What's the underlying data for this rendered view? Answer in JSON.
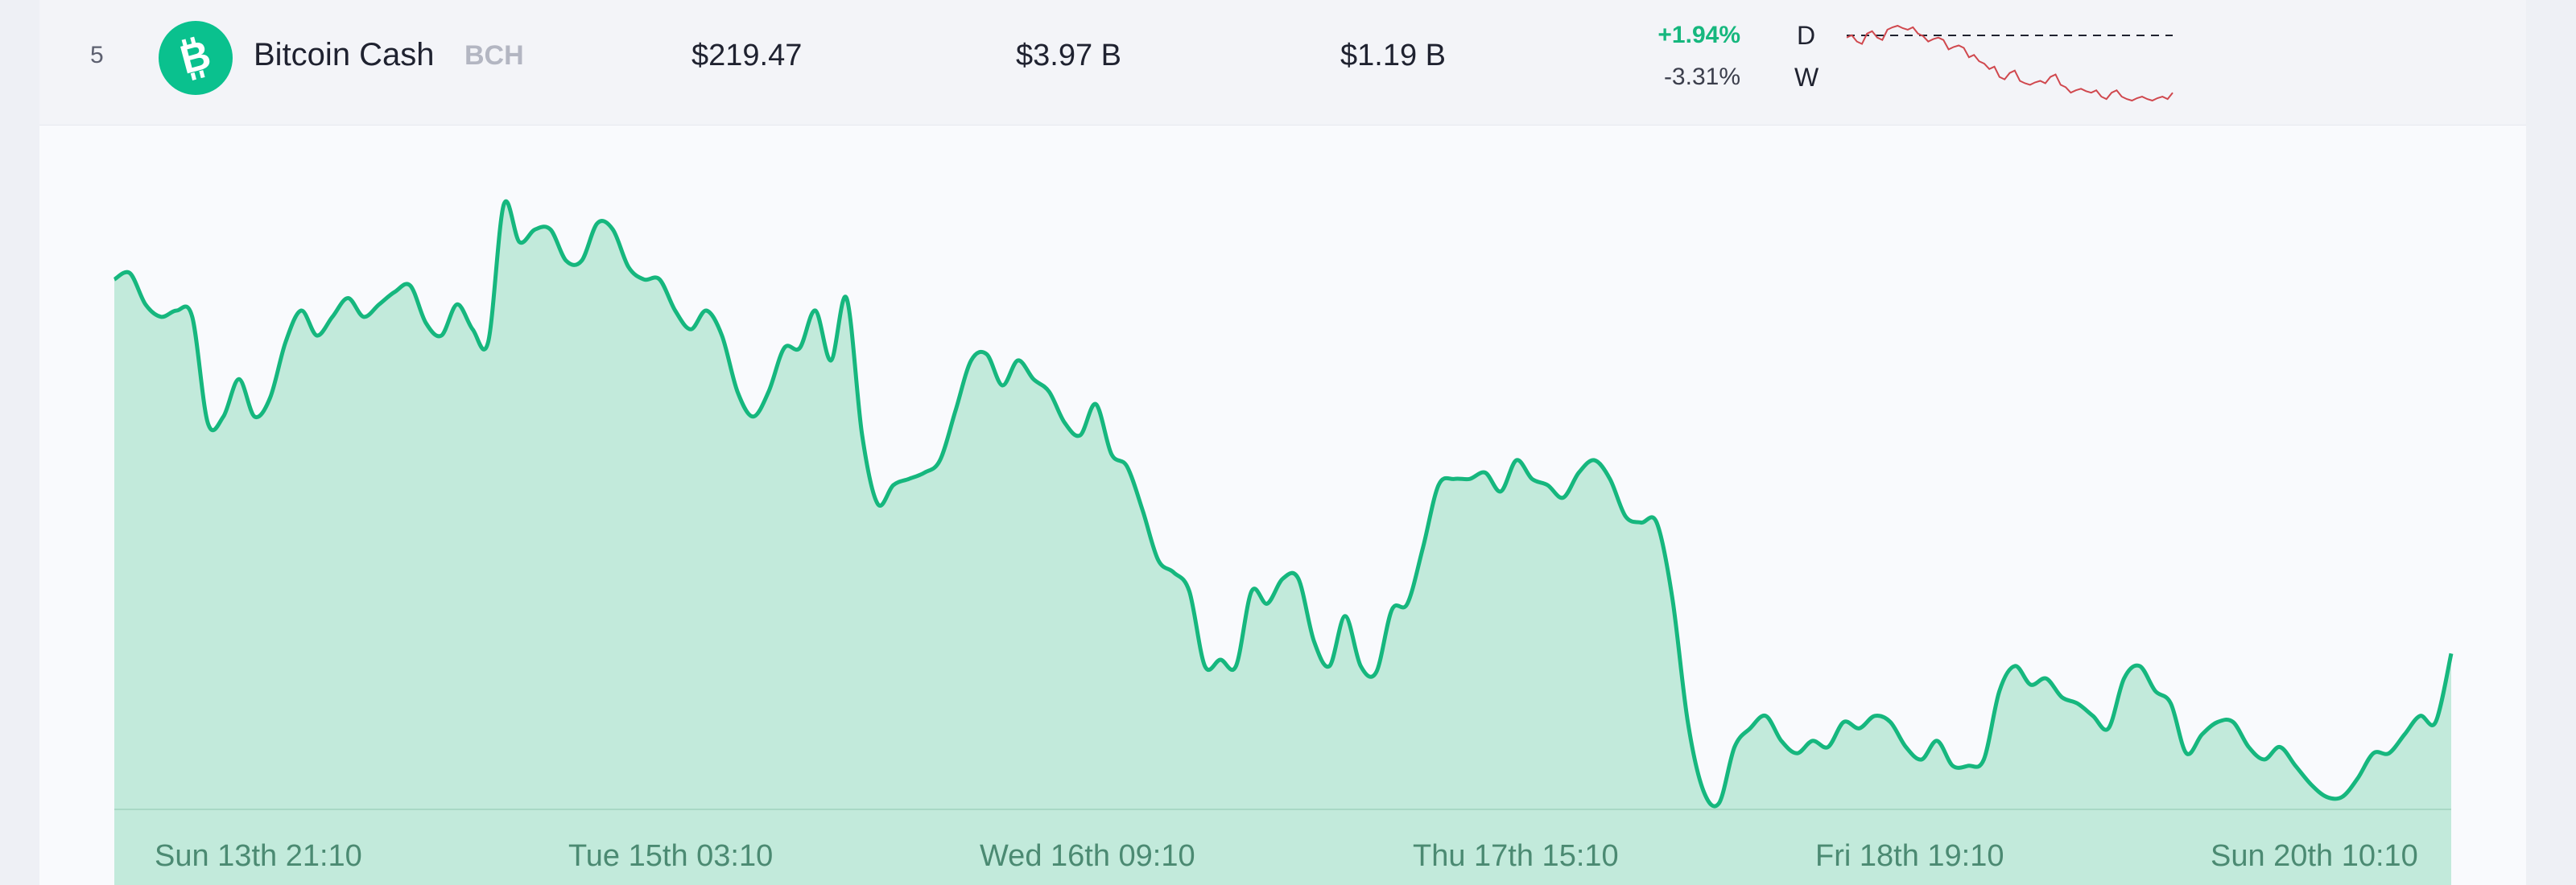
{
  "row": {
    "rank": "5",
    "name": "Bitcoin Cash",
    "symbol": "BCH",
    "price": "$219.47",
    "market_cap": "$3.97 B",
    "volume": "$1.19 B",
    "change_day": "+1.94%",
    "change_day_label": "D",
    "change_week": "-3.31%",
    "change_week_label": "W",
    "icon": "bitcoin-cash-logo-icon",
    "colors": {
      "brand": "#0ac18e",
      "up": "#16b77e",
      "sparkline": "#d0484e"
    }
  },
  "sparkline": {
    "values": [
      100,
      99,
      101,
      100,
      102,
      103,
      102,
      101,
      99,
      100,
      97,
      98,
      95,
      94,
      92,
      90,
      91,
      89,
      88,
      89,
      90,
      88,
      86,
      87,
      86,
      85,
      86,
      85,
      84,
      85,
      84,
      85,
      86
    ]
  },
  "chart_data": {
    "type": "area",
    "x_tick_labels": [
      "Sun 13th 21:10",
      "Tue 15th 03:10",
      "Wed 16th 09:10",
      "Thu 17th 15:10",
      "Fri 18th 19:10",
      "Sun 20th 10:10"
    ],
    "ylim": [
      0,
      100
    ],
    "grid": false,
    "line_color": "#16b77e",
    "fill_color": "#c2eadb",
    "values": [
      85,
      86,
      81,
      79,
      80,
      79,
      62,
      63,
      69,
      63,
      66,
      75,
      80,
      76,
      79,
      82,
      79,
      81,
      83,
      84,
      78,
      76,
      81,
      77,
      75,
      97,
      91,
      93,
      93,
      88,
      88,
      94,
      93,
      87,
      85,
      85,
      80,
      77,
      80,
      76,
      67,
      63,
      67,
      74,
      74,
      80,
      72,
      82,
      60,
      49,
      52,
      53,
      54,
      56,
      64,
      72,
      73,
      68,
      72,
      69,
      67,
      62,
      60,
      65,
      57,
      55,
      48,
      40,
      38,
      35,
      23,
      24,
      23,
      35,
      33,
      37,
      37,
      27,
      23,
      31,
      23,
      22,
      32,
      33,
      42,
      52,
      53,
      53,
      54,
      51,
      56,
      53,
      52,
      50,
      54,
      56,
      53,
      47,
      46,
      46,
      34,
      14,
      3,
      1,
      10,
      13,
      15,
      11,
      9,
      11,
      10,
      14,
      13,
      15,
      14,
      10,
      8,
      11,
      7,
      7,
      8,
      19,
      23,
      20,
      21,
      18,
      17,
      15,
      13,
      21,
      23,
      19,
      17,
      9,
      12,
      14,
      14,
      10,
      8,
      10,
      7,
      4,
      2,
      2,
      5,
      9,
      9,
      12,
      15,
      14,
      25
    ]
  }
}
